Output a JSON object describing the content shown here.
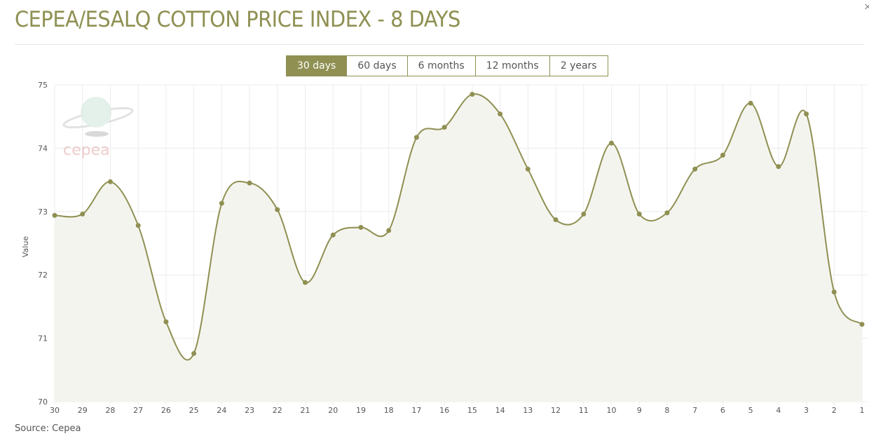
{
  "header": {
    "title": "CEPEA/ESALQ COTTON PRICE INDEX - 8 DAYS",
    "close_icon": "close-icon"
  },
  "range_tabs": [
    {
      "label": "30 days",
      "active": true
    },
    {
      "label": "60 days",
      "active": false
    },
    {
      "label": "6 months",
      "active": false
    },
    {
      "label": "12 months",
      "active": false
    },
    {
      "label": "2 years",
      "active": false
    }
  ],
  "logo": {
    "text": "cepea"
  },
  "source": "Source: Cepea",
  "colors": {
    "accent": "#8f9052",
    "area": "#f4f4ef",
    "grid": "#ececec"
  },
  "chart_data": {
    "type": "area",
    "title": "",
    "xlabel": "",
    "ylabel": "Value",
    "ylim": [
      70,
      75
    ],
    "yticks": [
      "70",
      "71",
      "72",
      "73",
      "74",
      "75"
    ],
    "grid": true,
    "categories": [
      "30",
      "29",
      "28",
      "27",
      "26",
      "25",
      "24",
      "23",
      "22",
      "21",
      "20",
      "19",
      "18",
      "17",
      "16",
      "15",
      "14",
      "13",
      "12",
      "11",
      "10",
      "9",
      "8",
      "7",
      "6",
      "5",
      "4",
      "3",
      "2",
      "1"
    ],
    "values": [
      72.94,
      72.96,
      73.47,
      72.78,
      71.26,
      70.76,
      73.13,
      73.45,
      73.03,
      71.88,
      72.63,
      72.75,
      72.7,
      74.17,
      74.33,
      74.85,
      74.54,
      73.67,
      72.87,
      72.96,
      74.08,
      72.96,
      72.98,
      73.67,
      73.89,
      74.71,
      73.71,
      74.54,
      71.73,
      71.22
    ]
  }
}
